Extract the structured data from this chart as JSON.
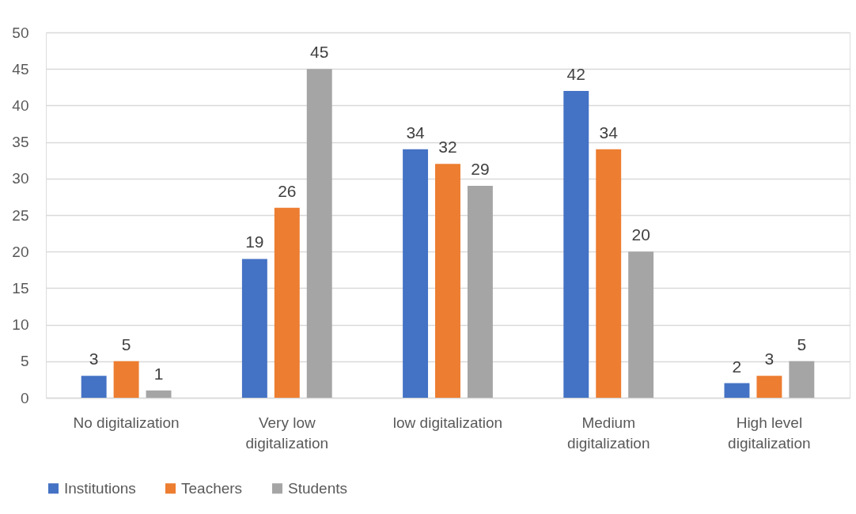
{
  "chart_data": {
    "type": "bar",
    "categories": [
      "No digitalization",
      "Very low digitalization",
      "low digitalization",
      "Medium digitalization",
      "High level digitalization"
    ],
    "series": [
      {
        "name": "Institutions",
        "color": "#4472c4",
        "values": [
          3,
          19,
          34,
          42,
          2
        ]
      },
      {
        "name": "Teachers",
        "color": "#ed7d31",
        "values": [
          5,
          26,
          32,
          34,
          3
        ]
      },
      {
        "name": "Students",
        "color": "#a5a5a5",
        "values": [
          1,
          45,
          29,
          20,
          5
        ]
      }
    ],
    "ylim": [
      0,
      50
    ],
    "yticks": [
      0,
      5,
      10,
      15,
      20,
      25,
      30,
      35,
      40,
      45,
      50
    ],
    "grid": "y",
    "legend": "bottom",
    "data_labels": true
  }
}
